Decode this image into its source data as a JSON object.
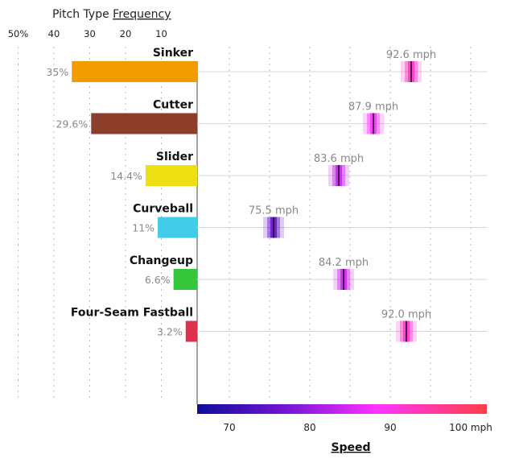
{
  "chart_data": {
    "type": "bar",
    "title_left": "Pitch Type",
    "title_left_underlined": "Frequency",
    "frequency_axis": {
      "ticks": [
        50,
        40,
        30,
        20,
        10
      ],
      "tick_labels": [
        "50%",
        "40",
        "30",
        "20",
        "10"
      ],
      "xlim": [
        0,
        50
      ]
    },
    "speed_axis": {
      "label": "Speed",
      "ticks": [
        70,
        80,
        90,
        100
      ],
      "tick_labels": [
        "70",
        "80",
        "90",
        "100 mph"
      ],
      "xlim": [
        66,
        102
      ],
      "colorscale": [
        "#0d0e99",
        "#7a14d6",
        "#ff33ff",
        "#ff3f45"
      ]
    },
    "categories": [
      "Sinker",
      "Cutter",
      "Slider",
      "Curveball",
      "Changeup",
      "Four-Seam Fastball"
    ],
    "frequency_values": [
      35,
      29.6,
      14.4,
      11,
      6.6,
      3.2
    ],
    "frequency_labels": [
      "35%",
      "29.6%",
      "14.4%",
      "11%",
      "6.6%",
      "3.2%"
    ],
    "speed_values": [
      92.6,
      87.9,
      83.6,
      75.5,
      84.2,
      92.0
    ],
    "speed_labels": [
      "92.6 mph",
      "87.9 mph",
      "83.6 mph",
      "75.5 mph",
      "84.2 mph",
      "92.0 mph"
    ],
    "bar_colors": [
      "#f39c00",
      "#8d3e2b",
      "#ecdf12",
      "#41cde8",
      "#35c63b",
      "#d9334e"
    ]
  }
}
